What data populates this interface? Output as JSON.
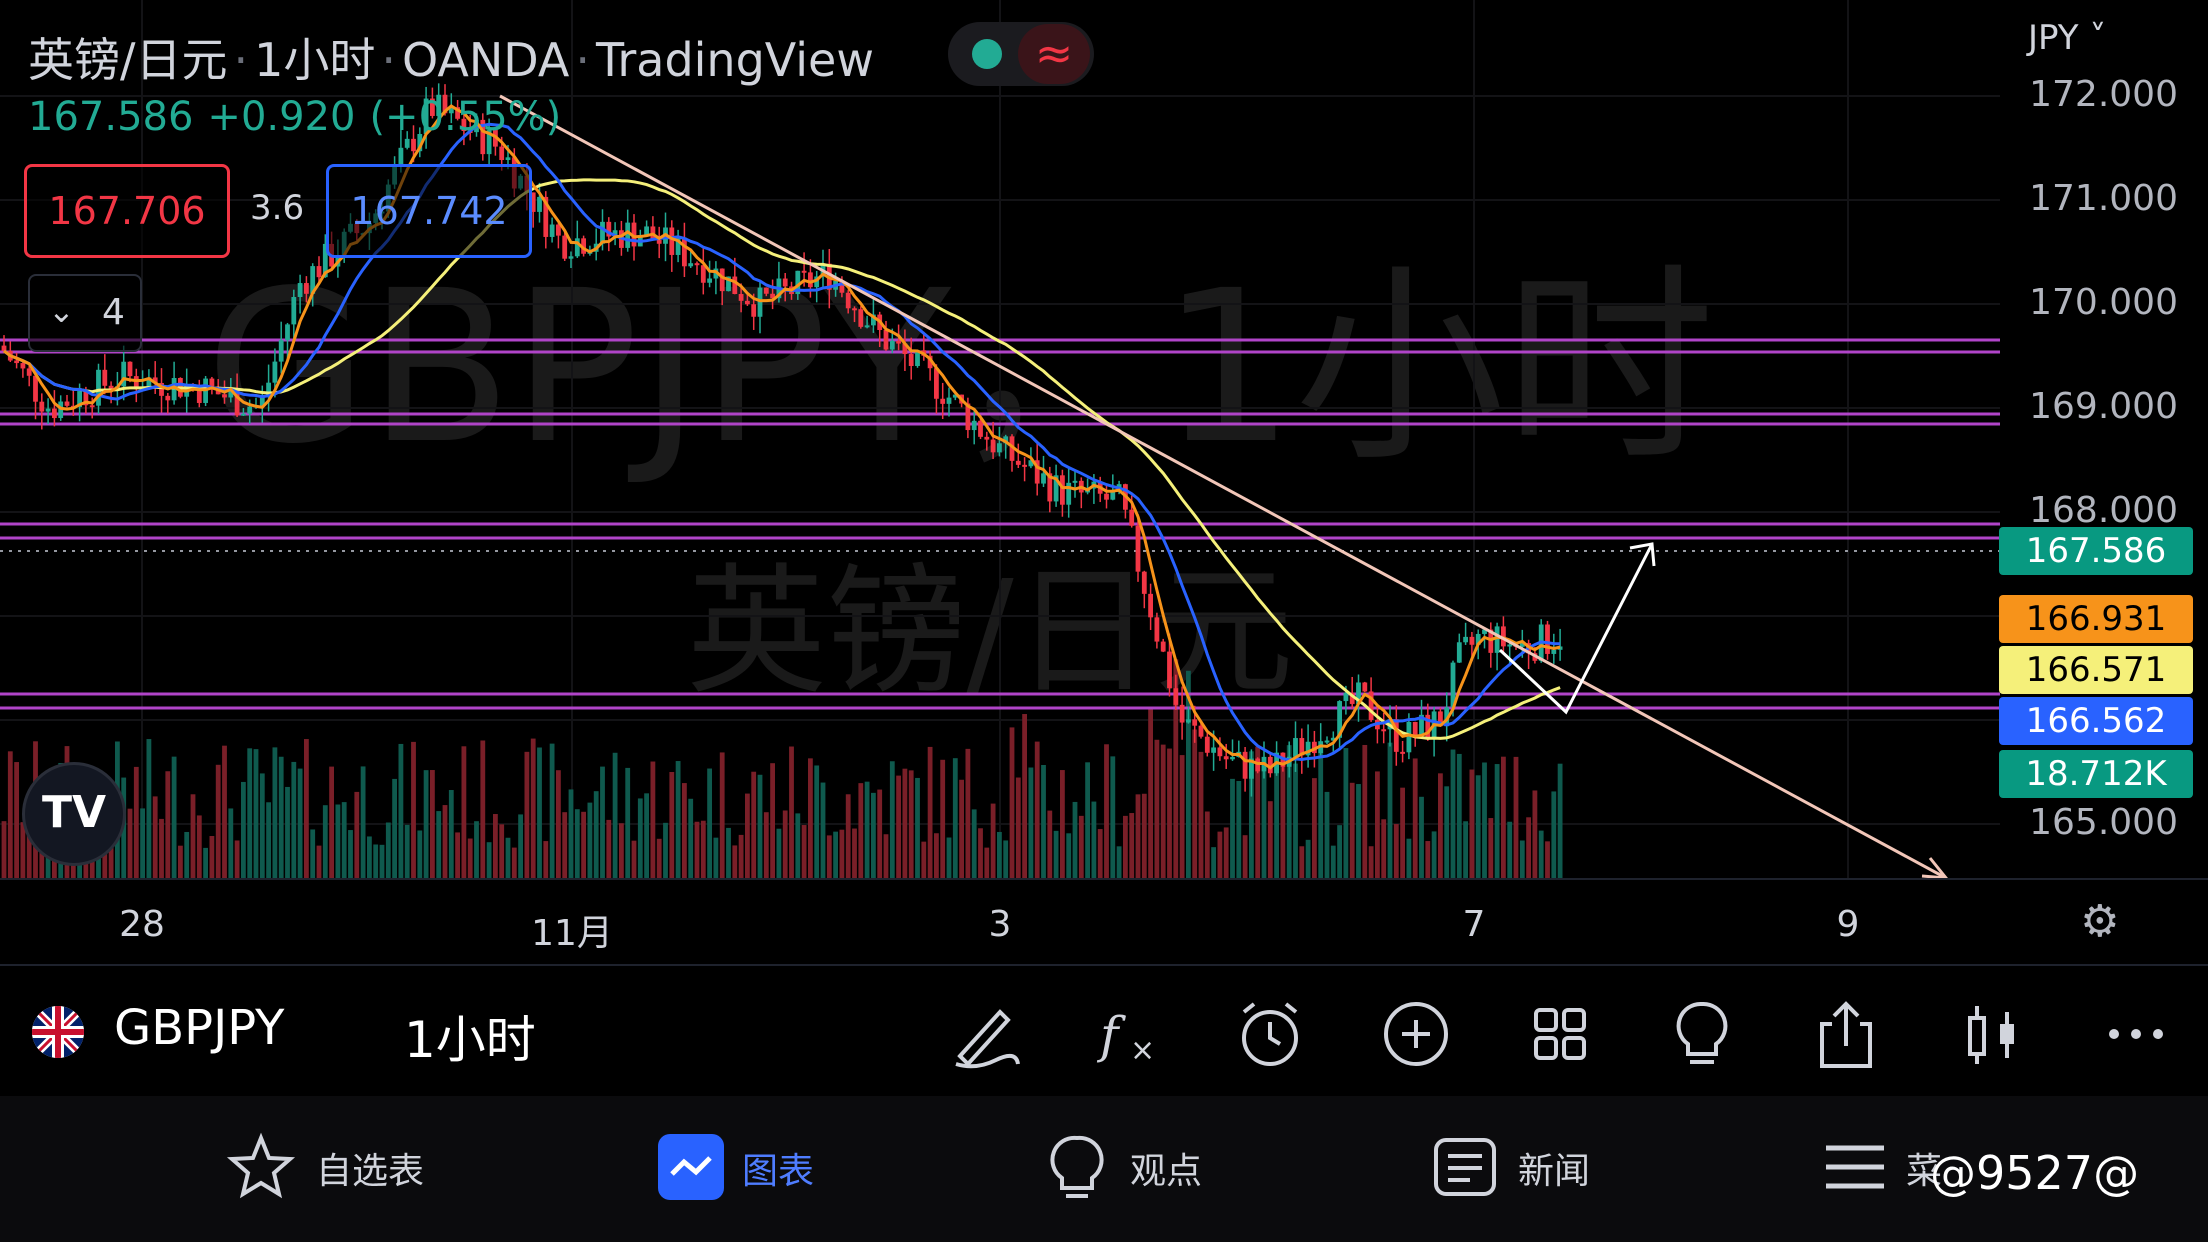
{
  "header": {
    "symbol_title": "英镑/日元",
    "interval": "1小时",
    "broker": "OANDA",
    "platform": "TradingView",
    "status_icon_right": "≈"
  },
  "quote": {
    "last": "167.586",
    "change": "+0.920",
    "change_pct": "(+0.55%)",
    "bid": "167.706",
    "spread": "3.6",
    "ask": "167.742",
    "indicators_count": "4"
  },
  "watermark": {
    "symbol": "GBPJPY，1小时",
    "name": "英镑/日元"
  },
  "price_axis": {
    "currency": "JPY",
    "ticks": [
      "172.000",
      "171.000",
      "170.000",
      "169.000",
      "168.000",
      "165.000"
    ],
    "tags": [
      {
        "label": "167.586",
        "bg": "#089981",
        "fg": "#ffffff"
      },
      {
        "label": "166.931",
        "bg": "#f7931a",
        "fg": "#000000"
      },
      {
        "label": "166.571",
        "bg": "#f5f07a",
        "fg": "#000000"
      },
      {
        "label": "166.562",
        "bg": "#2962ff",
        "fg": "#ffffff"
      },
      {
        "label": "18.712K",
        "bg": "#089981",
        "fg": "#ffffff"
      }
    ]
  },
  "time_axis": [
    "28",
    "11月",
    "3",
    "7",
    "9"
  ],
  "colors": {
    "up": "#22ab94",
    "down": "#f23645",
    "purple": "#b044c8",
    "trend": "#f2c6b8",
    "ma_fast": "#f7931a",
    "ma_mid": "#2962ff",
    "ma_slow": "#f5f07a"
  },
  "toolbar": {
    "symbol": "GBPJPY",
    "interval": "1小时",
    "icons": [
      "draw-icon",
      "indicator-fx-icon",
      "alarm-icon",
      "add-icon",
      "layout-grid-icon",
      "ideas-bulb-icon",
      "share-icon",
      "candle-type-icon",
      "more-icon"
    ]
  },
  "tabs": [
    {
      "label": "自选表",
      "icon": "star-icon",
      "active": false
    },
    {
      "label": "图表",
      "icon": "chart-icon",
      "active": true
    },
    {
      "label": "观点",
      "icon": "bulb-icon",
      "active": false
    },
    {
      "label": "新闻",
      "icon": "news-icon",
      "active": false
    },
    {
      "label": "菜",
      "icon": "menu-icon",
      "active": false
    }
  ],
  "brand_watermark": "@9527@"
}
